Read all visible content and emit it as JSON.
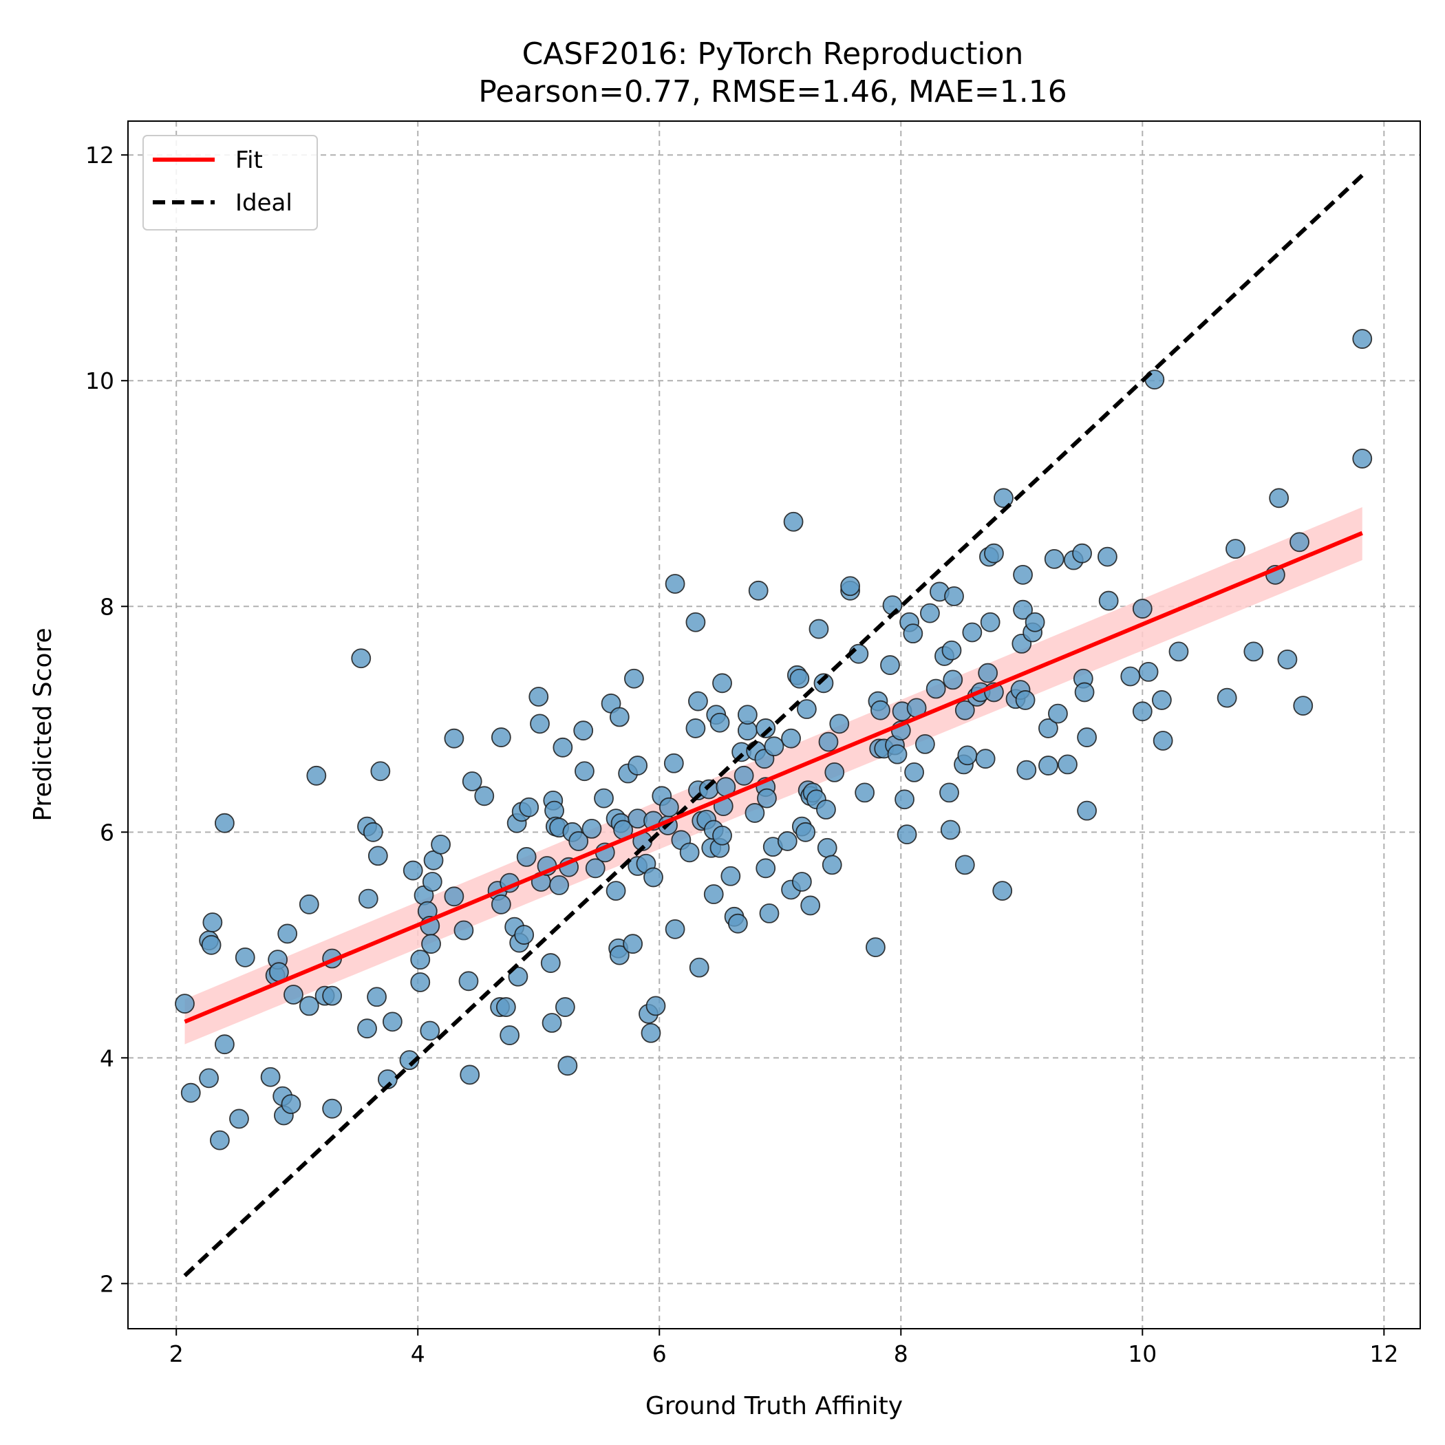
{
  "chart_data": {
    "type": "scatter",
    "title": "CASF2016: PyTorch Reproduction",
    "subtitle": "Pearson=0.77, RMSE=1.46, MAE=1.16",
    "xlabel": "Ground Truth Affinity",
    "ylabel": "Predicted Score",
    "xlim": [
      1.6,
      12.3
    ],
    "ylim": [
      1.6,
      12.3
    ],
    "xticks": [
      "2",
      "4",
      "6",
      "8",
      "10",
      "12"
    ],
    "yticks": [
      "2",
      "4",
      "6",
      "8",
      "10",
      "12"
    ],
    "grid": true,
    "legend_position": "top-left",
    "legend": [
      {
        "label": "Fit",
        "style": "solid",
        "color": "#ff0000"
      },
      {
        "label": "Ideal",
        "style": "dashed",
        "color": "#000000"
      }
    ],
    "point_color": "#5f9bc6",
    "fit_color": "#ff0000",
    "band_color": "#ffcccc",
    "fit_line": {
      "x": [
        2.07,
        11.82
      ],
      "y": [
        4.32,
        8.65
      ]
    },
    "fit_band": {
      "x": [
        2.07,
        11.82
      ],
      "upper": [
        4.52,
        8.88
      ],
      "lower": [
        4.12,
        8.41
      ]
    },
    "ideal_line": {
      "x": [
        2.07,
        11.82
      ],
      "y": [
        2.07,
        11.82
      ]
    },
    "series": [
      {
        "points": [
          [
            2.07,
            4.48
          ],
          [
            2.12,
            3.69
          ],
          [
            2.27,
            3.82
          ],
          [
            2.27,
            5.04
          ],
          [
            2.29,
            5.0
          ],
          [
            2.3,
            5.2
          ],
          [
            2.36,
            3.27
          ],
          [
            2.4,
            4.12
          ],
          [
            2.4,
            6.08
          ],
          [
            2.52,
            3.46
          ],
          [
            2.57,
            4.89
          ],
          [
            2.78,
            3.83
          ],
          [
            2.82,
            4.73
          ],
          [
            2.84,
            4.87
          ],
          [
            2.85,
            4.76
          ],
          [
            2.88,
            3.66
          ],
          [
            2.89,
            3.49
          ],
          [
            2.92,
            5.1
          ],
          [
            2.95,
            3.59
          ],
          [
            2.97,
            4.56
          ],
          [
            3.1,
            4.46
          ],
          [
            3.1,
            5.36
          ],
          [
            3.16,
            6.5
          ],
          [
            3.23,
            4.55
          ],
          [
            3.29,
            4.55
          ],
          [
            3.29,
            4.88
          ],
          [
            3.29,
            3.55
          ],
          [
            3.53,
            7.54
          ],
          [
            3.58,
            6.05
          ],
          [
            3.58,
            4.26
          ],
          [
            3.59,
            5.41
          ],
          [
            3.63,
            6.0
          ],
          [
            3.66,
            4.54
          ],
          [
            3.67,
            5.79
          ],
          [
            3.69,
            6.54
          ],
          [
            3.79,
            4.32
          ],
          [
            3.75,
            3.81
          ],
          [
            3.93,
            3.98
          ],
          [
            3.96,
            5.66
          ],
          [
            4.02,
            4.67
          ],
          [
            4.02,
            4.87
          ],
          [
            4.05,
            5.44
          ],
          [
            4.08,
            5.3
          ],
          [
            4.1,
            5.17
          ],
          [
            4.1,
            4.24
          ],
          [
            4.11,
            5.01
          ],
          [
            4.12,
            5.56
          ],
          [
            4.13,
            5.75
          ],
          [
            4.19,
            5.89
          ],
          [
            4.3,
            5.43
          ],
          [
            4.3,
            6.83
          ],
          [
            4.38,
            5.13
          ],
          [
            4.42,
            4.68
          ],
          [
            4.43,
            3.85
          ],
          [
            4.45,
            6.45
          ],
          [
            4.55,
            6.32
          ],
          [
            4.66,
            5.48
          ],
          [
            4.68,
            4.45
          ],
          [
            4.69,
            5.36
          ],
          [
            4.69,
            6.84
          ],
          [
            4.73,
            4.45
          ],
          [
            4.76,
            5.55
          ],
          [
            4.76,
            4.2
          ],
          [
            4.8,
            5.16
          ],
          [
            4.82,
            6.08
          ],
          [
            4.83,
            4.72
          ],
          [
            4.84,
            5.02
          ],
          [
            4.86,
            6.18
          ],
          [
            4.88,
            5.09
          ],
          [
            4.9,
            5.78
          ],
          [
            4.92,
            6.22
          ],
          [
            5.0,
            7.2
          ],
          [
            5.01,
            6.96
          ],
          [
            5.02,
            5.56
          ],
          [
            5.07,
            5.7
          ],
          [
            5.1,
            4.84
          ],
          [
            5.11,
            4.31
          ],
          [
            5.12,
            6.28
          ],
          [
            5.13,
            6.19
          ],
          [
            5.14,
            6.05
          ],
          [
            5.17,
            6.04
          ],
          [
            5.17,
            5.53
          ],
          [
            5.2,
            6.75
          ],
          [
            5.22,
            4.45
          ],
          [
            5.24,
            3.93
          ],
          [
            5.25,
            5.69
          ],
          [
            5.28,
            6.0
          ],
          [
            5.33,
            5.92
          ],
          [
            5.37,
            6.9
          ],
          [
            5.38,
            6.54
          ],
          [
            5.44,
            6.03
          ],
          [
            5.47,
            5.68
          ],
          [
            5.54,
            6.3
          ],
          [
            5.55,
            5.82
          ],
          [
            5.6,
            7.14
          ],
          [
            5.64,
            6.12
          ],
          [
            5.64,
            5.48
          ],
          [
            5.66,
            4.97
          ],
          [
            5.67,
            4.91
          ],
          [
            5.67,
            7.02
          ],
          [
            5.68,
            6.08
          ],
          [
            5.7,
            6.02
          ],
          [
            5.74,
            6.52
          ],
          [
            5.78,
            5.01
          ],
          [
            5.79,
            7.36
          ],
          [
            5.82,
            5.7
          ],
          [
            5.82,
            6.59
          ],
          [
            5.82,
            6.12
          ],
          [
            5.86,
            5.92
          ],
          [
            5.89,
            5.72
          ],
          [
            5.91,
            4.39
          ],
          [
            5.93,
            4.22
          ],
          [
            5.95,
            5.6
          ],
          [
            5.95,
            6.1
          ],
          [
            5.97,
            4.46
          ],
          [
            6.02,
            6.32
          ],
          [
            6.07,
            6.06
          ],
          [
            6.08,
            6.22
          ],
          [
            6.12,
            6.61
          ],
          [
            6.13,
            5.14
          ],
          [
            6.13,
            8.2
          ],
          [
            6.18,
            5.93
          ],
          [
            6.25,
            5.82
          ],
          [
            6.3,
            7.86
          ],
          [
            6.3,
            6.92
          ],
          [
            6.32,
            7.16
          ],
          [
            6.32,
            6.37
          ],
          [
            6.33,
            4.8
          ],
          [
            6.35,
            6.1
          ],
          [
            6.39,
            6.11
          ],
          [
            6.41,
            6.38
          ],
          [
            6.43,
            5.86
          ],
          [
            6.45,
            5.45
          ],
          [
            6.45,
            6.02
          ],
          [
            6.47,
            7.04
          ],
          [
            6.5,
            5.86
          ],
          [
            6.5,
            6.97
          ],
          [
            6.52,
            7.32
          ],
          [
            6.52,
            5.97
          ],
          [
            6.53,
            6.23
          ],
          [
            6.55,
            6.4
          ],
          [
            6.59,
            5.61
          ],
          [
            6.62,
            5.25
          ],
          [
            6.65,
            5.19
          ],
          [
            6.68,
            6.71
          ],
          [
            6.7,
            6.5
          ],
          [
            6.73,
            6.9
          ],
          [
            6.73,
            7.04
          ],
          [
            6.79,
            6.17
          ],
          [
            6.8,
            6.72
          ],
          [
            6.82,
            8.14
          ],
          [
            6.87,
            6.65
          ],
          [
            6.88,
            6.92
          ],
          [
            6.88,
            5.68
          ],
          [
            6.88,
            6.4
          ],
          [
            6.89,
            6.3
          ],
          [
            6.91,
            5.28
          ],
          [
            6.94,
            5.87
          ],
          [
            6.95,
            6.76
          ],
          [
            7.06,
            5.92
          ],
          [
            7.09,
            5.49
          ],
          [
            7.09,
            6.83
          ],
          [
            7.11,
            8.75
          ],
          [
            7.14,
            7.39
          ],
          [
            7.16,
            7.36
          ],
          [
            7.18,
            5.56
          ],
          [
            7.18,
            6.05
          ],
          [
            7.21,
            6.0
          ],
          [
            7.22,
            7.09
          ],
          [
            7.23,
            6.37
          ],
          [
            7.25,
            5.35
          ],
          [
            7.25,
            6.32
          ],
          [
            7.27,
            6.35
          ],
          [
            7.3,
            6.29
          ],
          [
            7.32,
            7.8
          ],
          [
            7.36,
            7.32
          ],
          [
            7.38,
            6.2
          ],
          [
            7.39,
            5.86
          ],
          [
            7.4,
            6.8
          ],
          [
            7.43,
            5.71
          ],
          [
            7.45,
            6.53
          ],
          [
            7.49,
            6.96
          ],
          [
            7.58,
            8.14
          ],
          [
            7.58,
            8.18
          ],
          [
            7.65,
            7.58
          ],
          [
            7.7,
            6.35
          ],
          [
            7.79,
            4.98
          ],
          [
            7.81,
            7.16
          ],
          [
            7.82,
            6.74
          ],
          [
            7.83,
            7.08
          ],
          [
            7.86,
            6.74
          ],
          [
            7.91,
            7.48
          ],
          [
            7.93,
            8.01
          ],
          [
            7.95,
            6.77
          ],
          [
            7.97,
            6.69
          ],
          [
            8.0,
            6.9
          ],
          [
            8.01,
            7.07
          ],
          [
            8.03,
            6.29
          ],
          [
            8.05,
            5.98
          ],
          [
            8.07,
            7.86
          ],
          [
            8.1,
            7.76
          ],
          [
            8.11,
            6.53
          ],
          [
            8.13,
            7.1
          ],
          [
            8.2,
            6.78
          ],
          [
            8.24,
            7.94
          ],
          [
            8.29,
            7.27
          ],
          [
            8.32,
            8.13
          ],
          [
            8.36,
            7.56
          ],
          [
            8.4,
            6.35
          ],
          [
            8.41,
            6.02
          ],
          [
            8.42,
            7.61
          ],
          [
            8.43,
            7.35
          ],
          [
            8.44,
            8.09
          ],
          [
            8.52,
            6.6
          ],
          [
            8.53,
            7.08
          ],
          [
            8.53,
            5.71
          ],
          [
            8.55,
            6.68
          ],
          [
            8.59,
            7.77
          ],
          [
            8.63,
            7.2
          ],
          [
            8.66,
            7.24
          ],
          [
            8.7,
            6.65
          ],
          [
            8.72,
            7.41
          ],
          [
            8.73,
            8.44
          ],
          [
            8.74,
            7.86
          ],
          [
            8.77,
            7.24
          ],
          [
            8.77,
            8.47
          ],
          [
            8.84,
            5.48
          ],
          [
            8.85,
            8.96
          ],
          [
            8.95,
            7.18
          ],
          [
            8.99,
            7.26
          ],
          [
            9.0,
            7.67
          ],
          [
            9.01,
            8.28
          ],
          [
            9.01,
            7.97
          ],
          [
            9.03,
            7.17
          ],
          [
            9.04,
            6.55
          ],
          [
            9.09,
            7.77
          ],
          [
            9.11,
            7.86
          ],
          [
            9.22,
            6.59
          ],
          [
            9.22,
            6.92
          ],
          [
            9.27,
            8.42
          ],
          [
            9.3,
            7.05
          ],
          [
            9.38,
            6.6
          ],
          [
            9.43,
            8.41
          ],
          [
            9.5,
            8.47
          ],
          [
            9.51,
            7.36
          ],
          [
            9.52,
            7.24
          ],
          [
            9.54,
            6.84
          ],
          [
            9.54,
            6.19
          ],
          [
            9.71,
            8.44
          ],
          [
            9.72,
            8.05
          ],
          [
            9.9,
            7.38
          ],
          [
            10.0,
            7.07
          ],
          [
            10.0,
            7.98
          ],
          [
            10.05,
            7.42
          ],
          [
            10.1,
            10.01
          ],
          [
            10.16,
            7.17
          ],
          [
            10.17,
            6.81
          ],
          [
            10.3,
            7.6
          ],
          [
            10.7,
            7.19
          ],
          [
            10.77,
            8.51
          ],
          [
            10.92,
            7.6
          ],
          [
            11.1,
            8.28
          ],
          [
            11.13,
            8.96
          ],
          [
            11.2,
            7.53
          ],
          [
            11.3,
            8.57
          ],
          [
            11.33,
            7.12
          ],
          [
            11.82,
            10.37
          ],
          [
            11.82,
            9.31
          ]
        ]
      }
    ]
  }
}
